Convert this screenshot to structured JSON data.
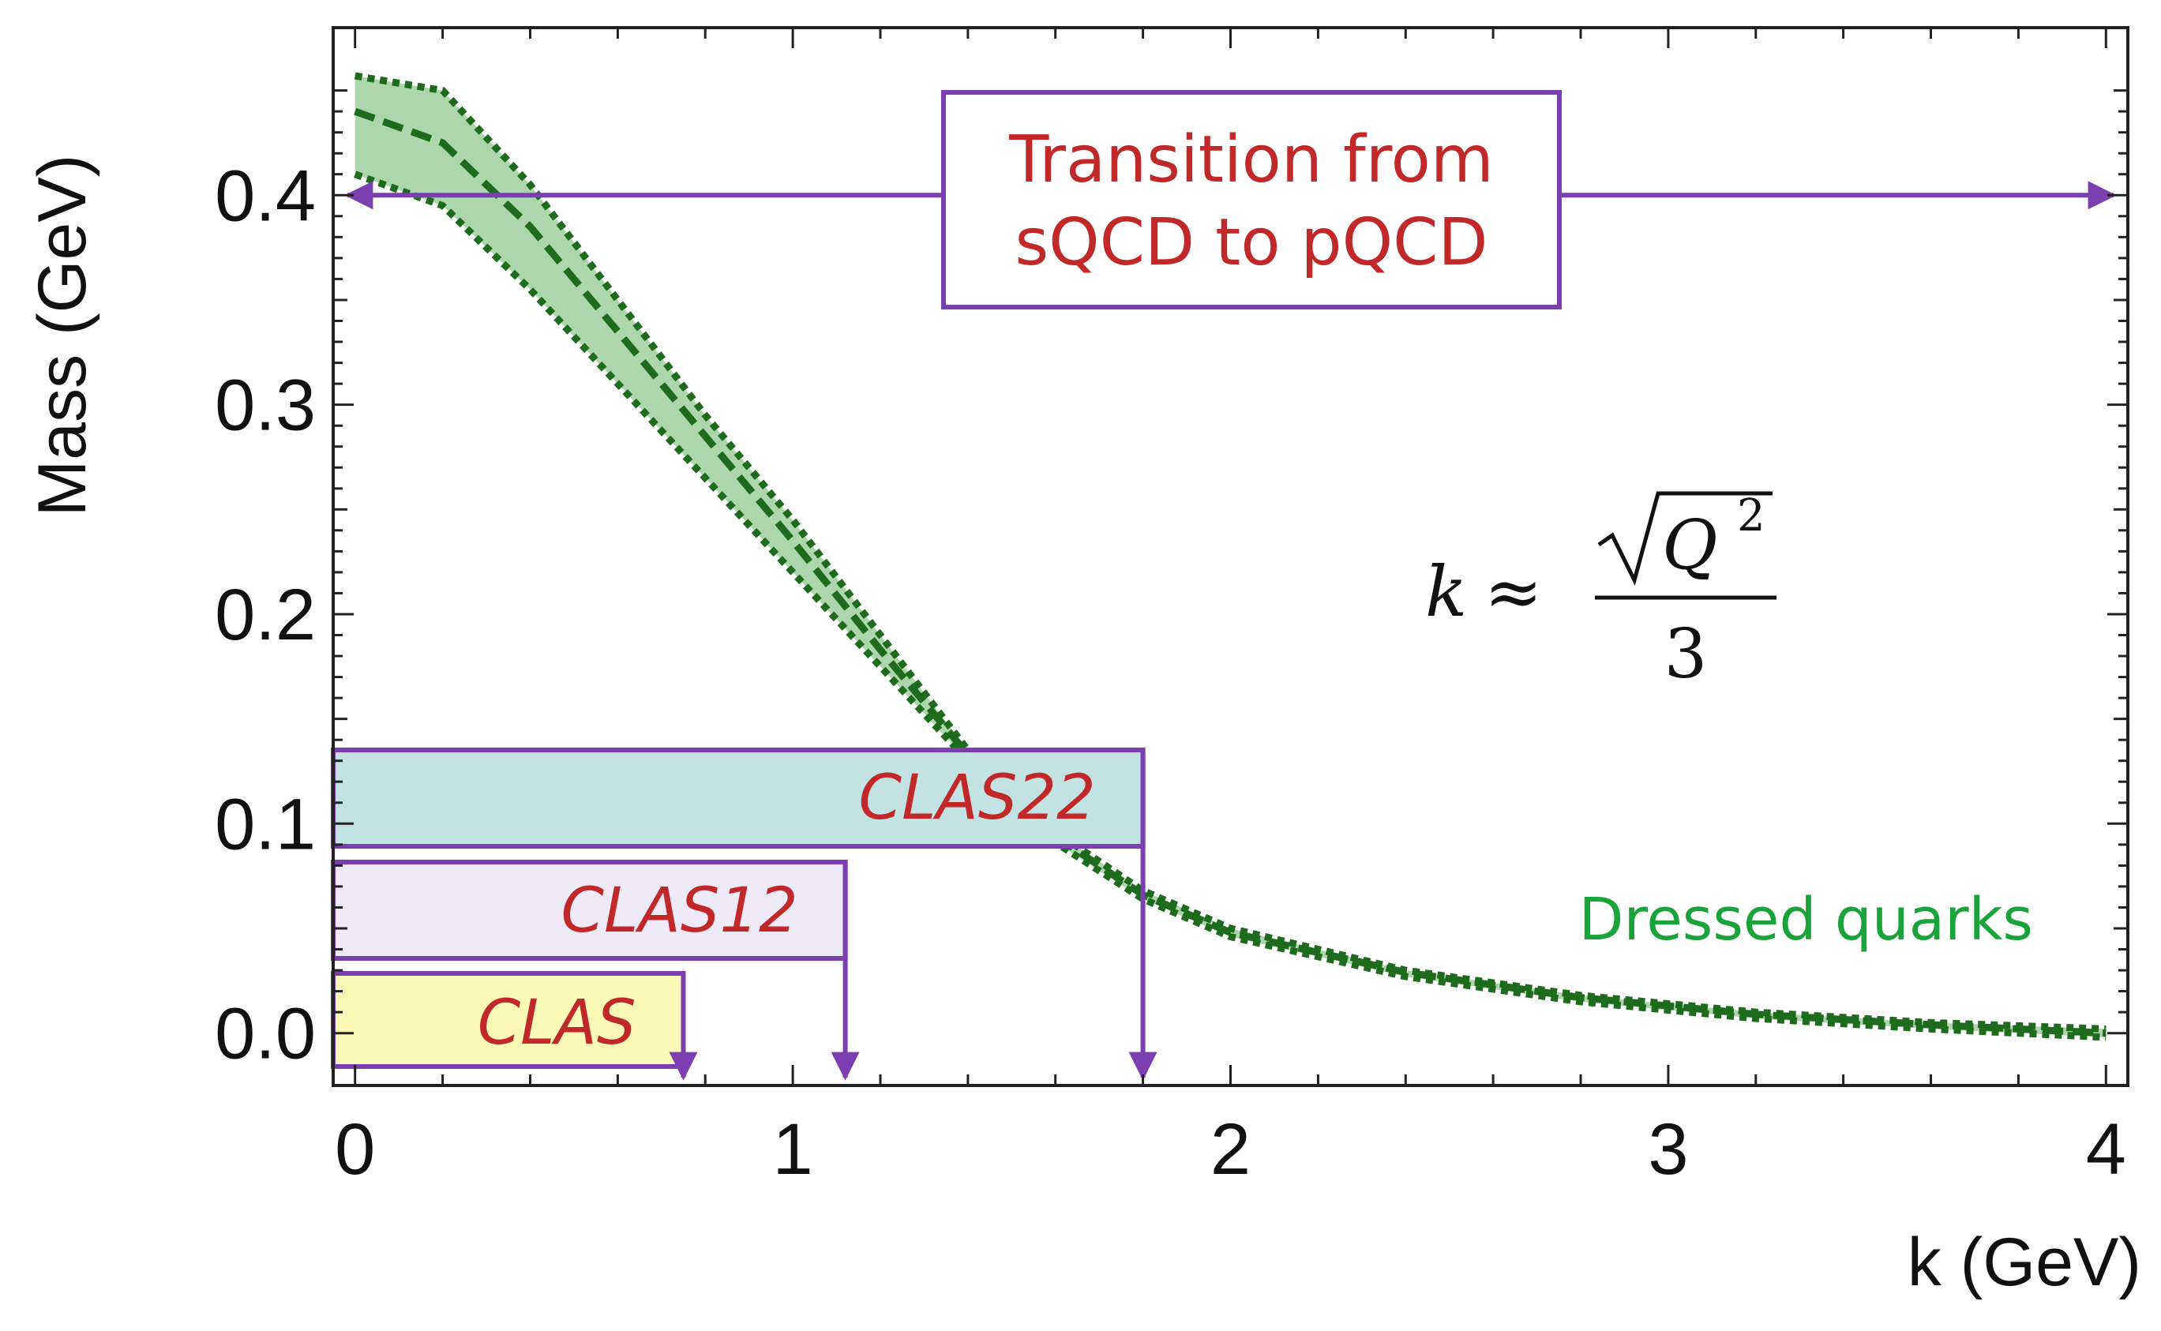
{
  "chart_data": {
    "type": "line",
    "xlabel": "k (GeV)",
    "ylabel": "Mass (GeV)",
    "xlim": [
      -0.05,
      4.05
    ],
    "ylim": [
      -0.025,
      0.48
    ],
    "x_ticks": [
      0,
      1,
      2,
      3,
      4
    ],
    "x_tick_labels": [
      "0",
      "1",
      "2",
      "3",
      "4"
    ],
    "y_ticks": [
      0.0,
      0.1,
      0.2,
      0.3,
      0.4
    ],
    "y_tick_labels": [
      "0.0",
      "0.1",
      "0.2",
      "0.3",
      "0.4"
    ],
    "series": [
      {
        "name": "Dressed quarks",
        "color": "#1e6b1e",
        "band_color": "#9fcf9f",
        "x": [
          0.0,
          0.2,
          0.4,
          0.6,
          0.8,
          1.0,
          1.2,
          1.4,
          1.6,
          1.8,
          2.0,
          2.4,
          2.8,
          3.2,
          3.6,
          4.0
        ],
        "upper": [
          0.457,
          0.45,
          0.405,
          0.35,
          0.295,
          0.245,
          0.19,
          0.135,
          0.096,
          0.068,
          0.05,
          0.03,
          0.018,
          0.01,
          0.005,
          0.002
        ],
        "mid": [
          0.44,
          0.425,
          0.385,
          0.335,
          0.285,
          0.235,
          0.183,
          0.133,
          0.094,
          0.066,
          0.048,
          0.029,
          0.017,
          0.009,
          0.004,
          0.0
        ],
        "lower": [
          0.41,
          0.395,
          0.355,
          0.31,
          0.265,
          0.22,
          0.175,
          0.13,
          0.091,
          0.064,
          0.046,
          0.027,
          0.015,
          0.007,
          0.002,
          -0.002
        ]
      }
    ],
    "ranges": [
      {
        "label": "CLAS22",
        "x_max": 1.8,
        "fill": "#c3e2e2",
        "text_color": "#c0282a"
      },
      {
        "label": "CLAS12",
        "x_max": 1.12,
        "fill": "#efeaf7",
        "text_color": "#c0282a"
      },
      {
        "label": "CLAS",
        "x_max": 0.75,
        "fill": "#fbf8b8",
        "text_color": "#c0282a"
      }
    ],
    "annotations": {
      "transition_line1": "Transition from",
      "transition_line2": "sQCD to pQCD",
      "transition_y": 0.4,
      "transition_color": "#c0282a",
      "dressed_label": "Dressed quarks",
      "dressed_color": "#1aa33a",
      "formula_lhs": "k",
      "formula_approx": "≈",
      "formula_q": "Q",
      "formula_exp": "2",
      "formula_den": "3"
    },
    "bracket_color": "#7b3fb0"
  }
}
